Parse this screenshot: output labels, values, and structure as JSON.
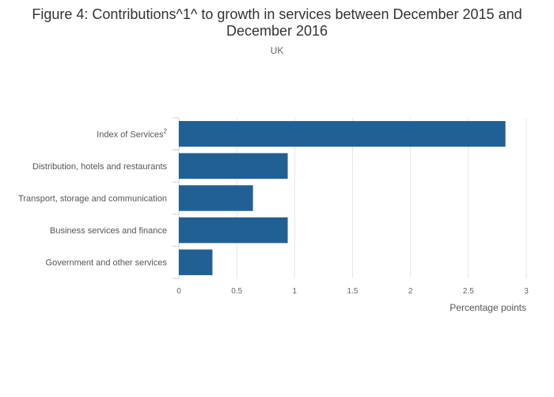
{
  "chart_data": {
    "type": "bar",
    "orientation": "horizontal",
    "title": "Figure 4: Contributions^1^ to growth in services between December 2015 and December 2016",
    "subtitle": "UK",
    "categories": [
      "Index of Services",
      "Distribution, hotels and restaurants",
      "Transport, storage and communication",
      "Business services and finance",
      "Government and other services"
    ],
    "category_superscripts": [
      "2",
      "",
      "",
      "",
      ""
    ],
    "values": [
      2.82,
      0.94,
      0.64,
      0.94,
      0.29
    ],
    "xlabel": "Percentage points",
    "ylabel": "",
    "xlim": [
      0,
      3
    ],
    "xticks": [
      "0",
      "0.5",
      "1",
      "1.5",
      "2",
      "2.5",
      "3"
    ],
    "grid": true,
    "bar_color": "#206095"
  }
}
